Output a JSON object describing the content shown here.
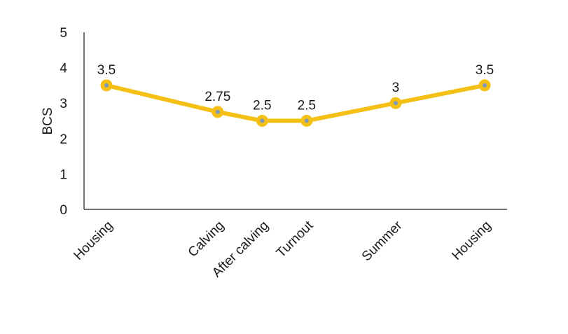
{
  "chart_data": {
    "type": "line",
    "categories": [
      "Housing",
      "Calving",
      "After calving",
      "Turnout",
      "Summer",
      "Housing"
    ],
    "x": [
      0,
      2.5,
      3.5,
      4.5,
      6.5,
      8.5
    ],
    "series": [
      {
        "values": [
          3.5,
          2.75,
          2.5,
          2.5,
          3,
          3.5
        ]
      }
    ],
    "data_labels": [
      "3.5",
      "2.75",
      "2.5",
      "2.5",
      "3",
      "3.5"
    ],
    "ylabel": "BCS",
    "xlabel": "",
    "ylim": [
      0,
      5
    ],
    "yticks": [
      0,
      1,
      2,
      3,
      4,
      5
    ],
    "grid": false,
    "line_color": "#F5C016",
    "marker_ring_color": "#F5C016",
    "marker_center_color": "#7E9AB8"
  }
}
